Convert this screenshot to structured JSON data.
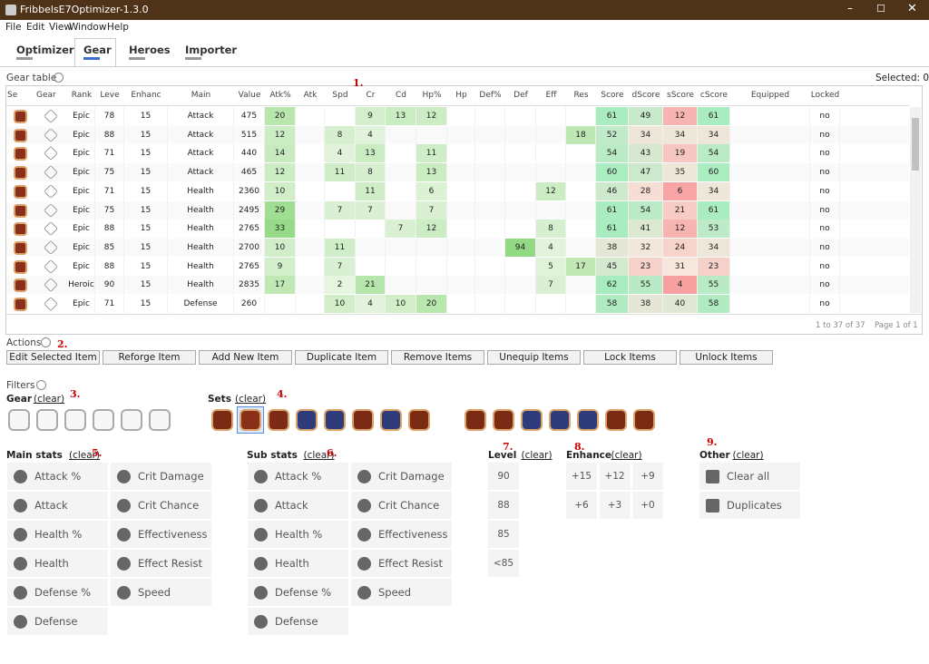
{
  "window": {
    "title": "FribbelsE7Optimizer-1.3.0"
  },
  "menu": [
    "File",
    "Edit",
    "View",
    "Window",
    "Help"
  ],
  "tabs": [
    "Optimizer",
    "Gear",
    "Heroes",
    "Importer"
  ],
  "gear_table": {
    "title": "Gear table",
    "selected": "Selected: 0",
    "columns": [
      "Se",
      "Gear",
      "Rank",
      "Leve",
      "Enhanc",
      "Main",
      "Value",
      "Atk%",
      "Atk",
      "Spd",
      "Cr",
      "Cd",
      "Hp%",
      "Hp",
      "Def%",
      "Def",
      "Eff",
      "Res",
      "Score",
      "dScore",
      "sScore",
      "cScore",
      "Equipped",
      "Locked"
    ],
    "rows": [
      [
        "Epic",
        78,
        15,
        "Attack",
        475,
        20,
        null,
        null,
        9,
        13,
        12,
        null,
        null,
        null,
        null,
        null,
        61,
        49,
        12,
        61,
        null,
        "no"
      ],
      [
        "Epic",
        88,
        15,
        "Attack",
        515,
        12,
        null,
        8,
        4,
        null,
        null,
        null,
        null,
        null,
        null,
        18,
        52,
        34,
        34,
        34,
        null,
        "no"
      ],
      [
        "Epic",
        71,
        15,
        "Attack",
        440,
        14,
        null,
        4,
        13,
        null,
        11,
        null,
        null,
        null,
        null,
        null,
        54,
        43,
        19,
        54,
        null,
        "no"
      ],
      [
        "Epic",
        75,
        15,
        "Attack",
        465,
        12,
        null,
        11,
        8,
        null,
        13,
        null,
        null,
        null,
        null,
        null,
        60,
        47,
        35,
        60,
        null,
        "no"
      ],
      [
        "Epic",
        71,
        15,
        "Health",
        2360,
        10,
        null,
        null,
        11,
        null,
        6,
        null,
        null,
        null,
        12,
        null,
        46,
        28,
        6,
        34,
        null,
        "no"
      ],
      [
        "Epic",
        75,
        15,
        "Health",
        2495,
        29,
        null,
        7,
        7,
        null,
        7,
        null,
        null,
        null,
        null,
        null,
        61,
        54,
        21,
        61,
        null,
        "no"
      ],
      [
        "Epic",
        88,
        15,
        "Health",
        2765,
        33,
        null,
        null,
        null,
        7,
        12,
        null,
        null,
        null,
        8,
        null,
        61,
        41,
        12,
        53,
        null,
        "no"
      ],
      [
        "Epic",
        85,
        15,
        "Health",
        2700,
        10,
        null,
        11,
        null,
        null,
        null,
        null,
        null,
        94,
        4,
        null,
        38,
        32,
        24,
        34,
        null,
        "no"
      ],
      [
        "Epic",
        88,
        15,
        "Health",
        2765,
        9,
        null,
        7,
        null,
        null,
        null,
        null,
        null,
        null,
        5,
        17,
        45,
        23,
        31,
        23,
        null,
        "no"
      ],
      [
        "Heroic",
        90,
        15,
        "Health",
        2835,
        17,
        null,
        2,
        21,
        null,
        null,
        null,
        null,
        null,
        7,
        null,
        62,
        55,
        4,
        55,
        null,
        "no"
      ],
      [
        "Epic",
        71,
        15,
        "Defense",
        260,
        null,
        null,
        10,
        4,
        10,
        20,
        null,
        null,
        null,
        null,
        null,
        58,
        38,
        40,
        58,
        null,
        "no"
      ]
    ],
    "footer": {
      "range": "1 to 37 of 37",
      "page": "Page 1 of 1"
    }
  },
  "actions": {
    "title": "Actions",
    "buttons": [
      "Edit Selected Item",
      "Reforge Item",
      "Add New Item",
      "Duplicate Item",
      "Remove Items",
      "Unequip Items",
      "Lock Items",
      "Unlock Items"
    ]
  },
  "filters": {
    "title": "Filters",
    "gear": {
      "label": "Gear",
      "clear": "(clear)"
    },
    "sets": {
      "label": "Sets",
      "clear": "(clear)"
    },
    "main_stats": {
      "label": "Main stats",
      "clear": "(clear)",
      "options": [
        "Attack %",
        "Attack",
        "Health %",
        "Health",
        "Defense %",
        "Defense",
        "Crit Damage",
        "Crit Chance",
        "Effectiveness",
        "Effect Resist",
        "Speed"
      ]
    },
    "sub_stats": {
      "label": "Sub stats",
      "clear": "(clear)",
      "options": [
        "Attack %",
        "Attack",
        "Health %",
        "Health",
        "Defense %",
        "Defense",
        "Crit Damage",
        "Crit Chance",
        "Effectiveness",
        "Effect Resist",
        "Speed"
      ]
    },
    "level": {
      "label": "Level",
      "clear": "(clear)",
      "options": [
        "90",
        "88",
        "85",
        "<85"
      ]
    },
    "enhance": {
      "label": "Enhance",
      "clear": "(clear)",
      "options": [
        "+15",
        "+12",
        "+9",
        "+6",
        "+3",
        "+0"
      ]
    },
    "other": {
      "label": "Other",
      "clear": "(clear)",
      "options": [
        "Clear all",
        "Duplicates"
      ]
    }
  },
  "annotations": [
    "1.",
    "2.",
    "3.",
    "4.",
    "5.",
    "6.",
    "7.",
    "8.",
    "9."
  ]
}
